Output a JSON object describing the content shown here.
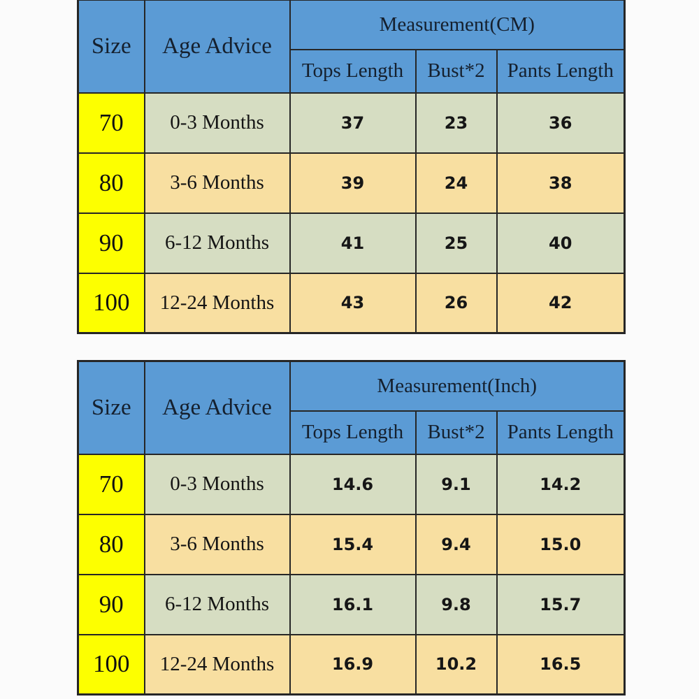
{
  "colors": {
    "header_blue": "#5b9bd5",
    "row_green": "#d6ddc2",
    "row_tan": "#f8dfa1",
    "size_yellow": "#fdff00",
    "border_color": "#262626",
    "header_text": "#15202e",
    "page_bg": "#fbfbfb"
  },
  "chart_data": [
    {
      "type": "table",
      "title": "Measurement(CM)",
      "unit": "CM",
      "header": {
        "size_label": "Size",
        "age_label": "Age Advice",
        "measurement_label": "Measurement(CM)",
        "sub_columns": [
          "Tops Length",
          "Bust*2",
          "Pants Length"
        ]
      },
      "rows": [
        {
          "size": "70",
          "age": "0-3 Months",
          "tops_length": "37",
          "bust2": "23",
          "pants_length": "36"
        },
        {
          "size": "80",
          "age": "3-6 Months",
          "tops_length": "39",
          "bust2": "24",
          "pants_length": "38"
        },
        {
          "size": "90",
          "age": "6-12 Months",
          "tops_length": "41",
          "bust2": "25",
          "pants_length": "40"
        },
        {
          "size": "100",
          "age": "12-24 Months",
          "tops_length": "43",
          "bust2": "26",
          "pants_length": "42"
        }
      ]
    },
    {
      "type": "table",
      "title": "Measurement(Inch)",
      "unit": "Inch",
      "header": {
        "size_label": "Size",
        "age_label": "Age Advice",
        "measurement_label": "Measurement(Inch)",
        "sub_columns": [
          "Tops Length",
          "Bust*2",
          "Pants Length"
        ]
      },
      "rows": [
        {
          "size": "70",
          "age": "0-3 Months",
          "tops_length": "14.6",
          "bust2": "9.1",
          "pants_length": "14.2"
        },
        {
          "size": "80",
          "age": "3-6 Months",
          "tops_length": "15.4",
          "bust2": "9.4",
          "pants_length": "15.0"
        },
        {
          "size": "90",
          "age": "6-12 Months",
          "tops_length": "16.1",
          "bust2": "9.8",
          "pants_length": "15.7"
        },
        {
          "size": "100",
          "age": "12-24 Months",
          "tops_length": "16.9",
          "bust2": "10.2",
          "pants_length": "16.5"
        }
      ]
    }
  ]
}
